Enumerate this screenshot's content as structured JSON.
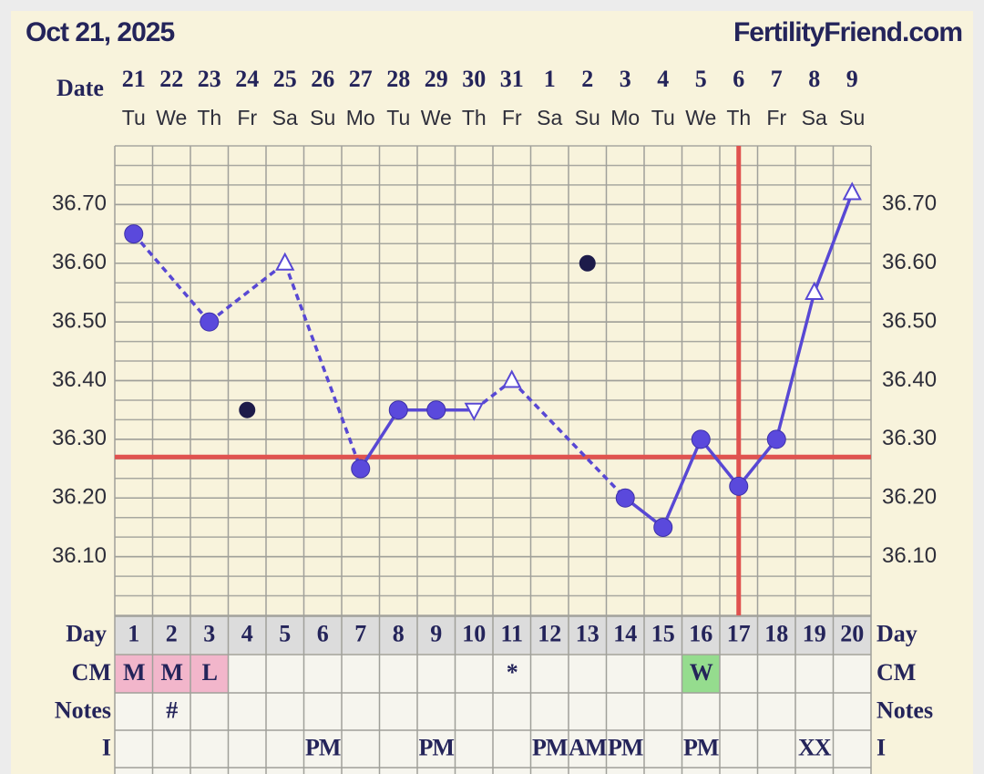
{
  "header": {
    "date": "Oct 21, 2025",
    "site": "FertilityFriend.com"
  },
  "chart_data": {
    "type": "line",
    "x_label": "Date",
    "categories": [
      "21",
      "22",
      "23",
      "24",
      "25",
      "26",
      "27",
      "28",
      "29",
      "30",
      "31",
      "1",
      "2",
      "3",
      "4",
      "5",
      "6",
      "7",
      "8",
      "9"
    ],
    "weekdays": [
      "Tu",
      "We",
      "Th",
      "Fr",
      "Sa",
      "Su",
      "Mo",
      "Tu",
      "We",
      "Th",
      "Fr",
      "Sa",
      "Su",
      "Mo",
      "Tu",
      "We",
      "Th",
      "Fr",
      "Sa",
      "Su"
    ],
    "days": [
      1,
      2,
      3,
      4,
      5,
      6,
      7,
      8,
      9,
      10,
      11,
      12,
      13,
      14,
      15,
      16,
      17,
      18,
      19,
      20
    ],
    "values": [
      36.65,
      null,
      36.5,
      36.35,
      36.6,
      null,
      36.25,
      36.35,
      36.35,
      36.35,
      36.4,
      null,
      36.6,
      36.2,
      36.15,
      36.3,
      36.22,
      36.3,
      36.55,
      36.72
    ],
    "markers": [
      "circle",
      null,
      "circle",
      "dot",
      "triangle-up",
      null,
      "circle",
      "circle",
      "circle",
      "triangle-down",
      "triangle-up",
      null,
      "dot",
      "circle",
      "circle",
      "circle",
      "circle",
      "circle",
      "triangle-up",
      "triangle-up"
    ],
    "segment_styles": [
      "dashed",
      "dashed",
      "dashed",
      "solid",
      "solid",
      "solid",
      "dashed",
      "dashed",
      "solid",
      "solid",
      "solid",
      "solid",
      "solid",
      "solid"
    ],
    "color": "#5848d4",
    "discard_color": "#1d1b4a",
    "marker_color": "#5a49dc",
    "coverline": 36.27,
    "ovulation_day": 17,
    "reference_color": "#e0524f",
    "ylim": [
      36.0,
      36.8
    ],
    "yticks": [
      {
        "value": 36.1,
        "label": "36.10"
      },
      {
        "value": 36.2,
        "label": "36.20"
      },
      {
        "value": 36.3,
        "label": "36.30"
      },
      {
        "value": 36.4,
        "label": "36.40"
      },
      {
        "value": 36.5,
        "label": "36.50"
      },
      {
        "value": 36.6,
        "label": "36.60"
      },
      {
        "value": 36.7,
        "label": "36.70"
      }
    ],
    "grid": true
  },
  "table": {
    "day_label": "Day",
    "rows": [
      {
        "label": "CM",
        "cells": [
          "M",
          "M",
          "L",
          null,
          null,
          null,
          null,
          null,
          null,
          null,
          "*",
          null,
          null,
          null,
          null,
          "W",
          null,
          null,
          null,
          null
        ],
        "cell_colors": [
          "#f2b6cb",
          "#f2b6cb",
          "#f2b6cb",
          null,
          null,
          null,
          null,
          null,
          null,
          null,
          null,
          null,
          null,
          null,
          null,
          "#95dc8e",
          null,
          null,
          null,
          null
        ]
      },
      {
        "label": "Notes",
        "cells": [
          null,
          "#",
          null,
          null,
          null,
          null,
          null,
          null,
          null,
          null,
          null,
          null,
          null,
          null,
          null,
          null,
          null,
          null,
          null,
          null
        ]
      },
      {
        "label": "I",
        "cells": [
          null,
          null,
          null,
          null,
          null,
          "PM",
          null,
          null,
          "PM",
          null,
          null,
          "PM",
          "AM",
          "PM",
          null,
          "PM",
          null,
          null,
          "XX",
          null
        ]
      }
    ]
  }
}
